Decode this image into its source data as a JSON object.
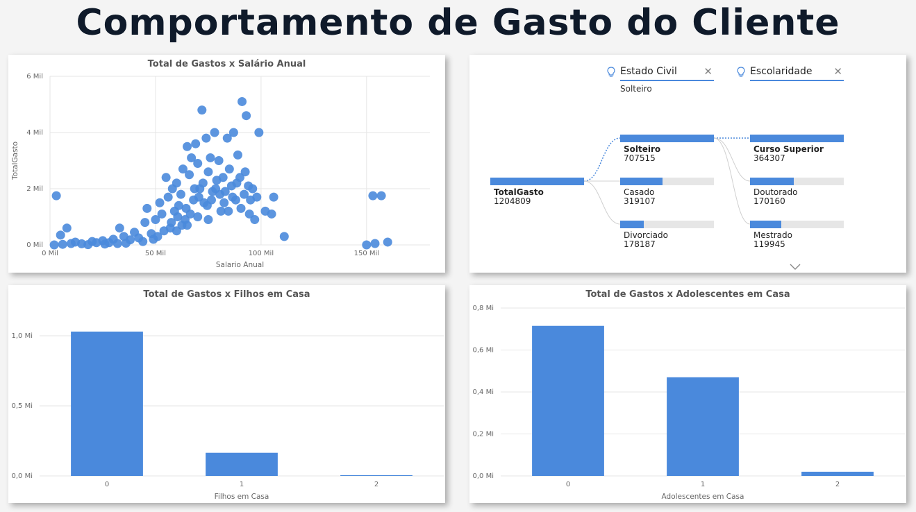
{
  "page_title": "Comportamento de Gasto do Cliente",
  "colors": {
    "accent": "#4a89dc"
  },
  "decomp": {
    "filters": [
      {
        "label": "Estado Civil",
        "value": "Solteiro",
        "icon": "lightbulb-icon"
      },
      {
        "label": "Escolaridade",
        "value": "",
        "icon": "lightbulb-icon"
      }
    ],
    "root": {
      "label": "TotalGasto",
      "value": "1204809",
      "fraction": 1.0
    },
    "level1": [
      {
        "label": "Solteiro",
        "value": "707515",
        "fraction": 1.0
      },
      {
        "label": "Casado",
        "value": "319107",
        "fraction": 0.45
      },
      {
        "label": "Divorciado",
        "value": "178187",
        "fraction": 0.25
      }
    ],
    "level2": [
      {
        "label": "Curso Superior",
        "value": "364307",
        "fraction": 1.0
      },
      {
        "label": "Doutorado",
        "value": "170160",
        "fraction": 0.47
      },
      {
        "label": "Mestrado",
        "value": "119945",
        "fraction": 0.33
      }
    ],
    "expand_icon": "chevron-down-icon"
  },
  "chart_data": [
    {
      "type": "scatter",
      "title": "Total de Gastos x Salário Anual",
      "xlabel": "Salario Anual",
      "ylabel": "TotalGasto",
      "xlim": [
        0,
        180000
      ],
      "ylim": [
        0,
        6000
      ],
      "xticks": [
        "0 Mil",
        "50 Mil",
        "100 Mil",
        "150 Mil"
      ],
      "xtick_values": [
        0,
        50000,
        100000,
        150000
      ],
      "yticks": [
        "0 Mil",
        "2 Mil",
        "4 Mil",
        "6 Mil"
      ],
      "ytick_values": [
        0,
        2000,
        4000,
        6000
      ],
      "grid": true,
      "points": [
        [
          3000,
          1750
        ],
        [
          5000,
          350
        ],
        [
          8000,
          600
        ],
        [
          2000,
          0
        ],
        [
          6000,
          20
        ],
        [
          10000,
          50
        ],
        [
          12000,
          100
        ],
        [
          15000,
          40
        ],
        [
          20000,
          120
        ],
        [
          22000,
          80
        ],
        [
          25000,
          150
        ],
        [
          28000,
          80
        ],
        [
          30000,
          200
        ],
        [
          32000,
          50
        ],
        [
          33000,
          600
        ],
        [
          35000,
          300
        ],
        [
          38000,
          180
        ],
        [
          40000,
          450
        ],
        [
          42000,
          250
        ],
        [
          45000,
          800
        ],
        [
          46000,
          1300
        ],
        [
          48000,
          400
        ],
        [
          50000,
          900
        ],
        [
          52000,
          1500
        ],
        [
          53000,
          1100
        ],
        [
          55000,
          2400
        ],
        [
          56000,
          1700
        ],
        [
          57000,
          600
        ],
        [
          58000,
          2000
        ],
        [
          59000,
          1200
        ],
        [
          60000,
          2200
        ],
        [
          61000,
          1400
        ],
        [
          62000,
          1800
        ],
        [
          63000,
          2700
        ],
        [
          64000,
          900
        ],
        [
          65000,
          3500
        ],
        [
          66000,
          2500
        ],
        [
          67000,
          3100
        ],
        [
          68000,
          1600
        ],
        [
          69000,
          3600
        ],
        [
          70000,
          2900
        ],
        [
          71000,
          2000
        ],
        [
          72000,
          4800
        ],
        [
          73000,
          1500
        ],
        [
          74000,
          3800
        ],
        [
          75000,
          2600
        ],
        [
          76000,
          3100
        ],
        [
          77000,
          1900
        ],
        [
          78000,
          4000
        ],
        [
          79000,
          2300
        ],
        [
          80000,
          3000
        ],
        [
          81000,
          1200
        ],
        [
          82000,
          2400
        ],
        [
          83000,
          1900
        ],
        [
          84000,
          3800
        ],
        [
          85000,
          2700
        ],
        [
          86000,
          2100
        ],
        [
          87000,
          4000
        ],
        [
          88000,
          1600
        ],
        [
          89000,
          3200
        ],
        [
          90000,
          2400
        ],
        [
          91000,
          5100
        ],
        [
          92000,
          1800
        ],
        [
          93000,
          4600
        ],
        [
          94000,
          2100
        ],
        [
          95000,
          1600
        ],
        [
          96000,
          2000
        ],
        [
          97000,
          900
        ],
        [
          98000,
          1700
        ],
        [
          99000,
          4000
        ],
        [
          102000,
          1200
        ],
        [
          105000,
          1100
        ],
        [
          106000,
          1700
        ],
        [
          111000,
          300
        ],
        [
          153000,
          1750
        ],
        [
          157000,
          1750
        ],
        [
          150000,
          0
        ],
        [
          154000,
          50
        ],
        [
          160000,
          100
        ],
        [
          18000,
          10
        ],
        [
          26000,
          30
        ],
        [
          36000,
          60
        ],
        [
          44000,
          120
        ],
        [
          49000,
          200
        ],
        [
          51000,
          300
        ],
        [
          54000,
          500
        ],
        [
          57500,
          800
        ],
        [
          60500,
          1000
        ],
        [
          62500,
          700
        ],
        [
          64500,
          1300
        ],
        [
          66500,
          1100
        ],
        [
          68500,
          2000
        ],
        [
          70500,
          1700
        ],
        [
          72500,
          2200
        ],
        [
          74500,
          1400
        ],
        [
          76500,
          1600
        ],
        [
          78500,
          2000
        ],
        [
          80500,
          1800
        ],
        [
          82500,
          1500
        ],
        [
          84500,
          1200
        ],
        [
          86500,
          1700
        ],
        [
          88500,
          2200
        ],
        [
          90500,
          1300
        ],
        [
          92500,
          2600
        ],
        [
          94500,
          1100
        ],
        [
          60000,
          500
        ],
        [
          65000,
          700
        ],
        [
          70000,
          1000
        ],
        [
          75000,
          900
        ]
      ]
    },
    {
      "type": "bar",
      "title": "Total de Gastos x Filhos em Casa",
      "xlabel": "Filhos em Casa",
      "ylabel": "",
      "categories": [
        "0",
        "1",
        "2"
      ],
      "values": [
        1.03,
        0.165,
        0.005
      ],
      "unit": "Mi",
      "ylim": [
        0,
        1.0
      ],
      "yticks": [
        "0,0 Mi",
        "0,5 Mi",
        "1,0 Mi"
      ],
      "ytick_values": [
        0,
        0.5,
        1.0
      ],
      "grid": true
    },
    {
      "type": "bar",
      "title": "Total de Gastos x Adolescentes em Casa",
      "xlabel": "Adolescentes em Casa",
      "ylabel": "",
      "categories": [
        "0",
        "1",
        "2"
      ],
      "values": [
        0.715,
        0.47,
        0.02
      ],
      "unit": "Mi",
      "ylim": [
        0,
        0.8
      ],
      "yticks": [
        "0,0 Mi",
        "0,2 Mi",
        "0,4 Mi",
        "0,6 Mi",
        "0,8 Mi"
      ],
      "ytick_values": [
        0,
        0.2,
        0.4,
        0.6,
        0.8
      ],
      "grid": true
    }
  ]
}
